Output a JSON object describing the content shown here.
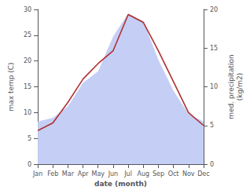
{
  "chart_data": {
    "type": "line",
    "categories": [
      "Jan",
      "Feb",
      "Mar",
      "Apr",
      "May",
      "Jun",
      "Jul",
      "Aug",
      "Sep",
      "Oct",
      "Nov",
      "Dec"
    ],
    "xlabel": "date (month)",
    "ylabel": "max temp (C)",
    "y2label": "med. precipitation\n(kg/m2)",
    "series": [
      {
        "type": "area",
        "axis": "y2",
        "color": "#c5cff5",
        "values": [
          5.5,
          6.0,
          7.5,
          10.5,
          12.0,
          16.5,
          19.5,
          18.5,
          13.5,
          9.5,
          6.5,
          5.5
        ]
      },
      {
        "type": "line",
        "color": "#b03030",
        "values": [
          6.5,
          8.0,
          12.0,
          16.5,
          19.5,
          22.0,
          29.0,
          27.5,
          22.0,
          16.0,
          10.0,
          7.5
        ]
      }
    ],
    "ylim": [
      0,
      30
    ],
    "yticks": [
      0,
      5,
      10,
      15,
      20,
      25,
      30
    ],
    "y2lim": [
      0,
      20
    ],
    "y2ticks": [
      0,
      5,
      10,
      15,
      20
    ],
    "grid": false
  }
}
